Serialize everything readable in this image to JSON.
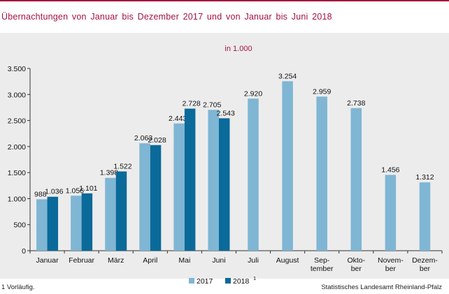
{
  "title": "Übernachtungen  von  Januar bis Dezember  2017 und von Januar  bis Juni 2018",
  "footnote": "1 Vorläufig.",
  "source": "Statistisches Landesamt Rheinland-Pfalz",
  "colors": {
    "accent": "#a5123f",
    "series2017": "#7fb6d4",
    "series2018": "#0a6a99",
    "panel": "#ececec"
  },
  "chart_data": {
    "type": "bar",
    "subtitle": "in 1.000",
    "categories": [
      [
        "Januar"
      ],
      [
        "Februar"
      ],
      [
        "März"
      ],
      [
        "April"
      ],
      [
        "Mai"
      ],
      [
        "Juni"
      ],
      [
        "Juli"
      ],
      [
        "August"
      ],
      [
        "Sep-",
        "tember"
      ],
      [
        "Okto-",
        "ber"
      ],
      [
        "Novem-",
        "ber"
      ],
      [
        "Dezem-",
        "ber"
      ]
    ],
    "series": [
      {
        "name": "2017",
        "sup": "",
        "values": [
          988,
          1056,
          1398,
          2063,
          2443,
          2705,
          2920,
          3254,
          2959,
          2738,
          1456,
          1312
        ],
        "labels": [
          "988",
          "1.056",
          "1.398",
          "2.063",
          "2.443",
          "2.705",
          "2.920",
          "3.254",
          "2.959",
          "2.738",
          "1.456",
          "1.312"
        ]
      },
      {
        "name": "2018",
        "sup": "1",
        "values": [
          1036,
          1101,
          1522,
          2028,
          2728,
          2543,
          null,
          null,
          null,
          null,
          null,
          null
        ],
        "labels": [
          "1.036",
          "1.101",
          "1.522",
          "2.028",
          "2.728",
          "2.543",
          "",
          "",
          "",
          "",
          "",
          ""
        ]
      }
    ],
    "yticks": [
      0,
      500,
      1000,
      1500,
      2000,
      2500,
      3000,
      3500
    ],
    "ytick_labels": [
      "0",
      "500",
      "1.000",
      "1.500",
      "2.000",
      "2.500",
      "3.000",
      "3.500"
    ],
    "ylim": [
      0,
      3500
    ],
    "grid": false,
    "legend": "bottom-center"
  }
}
